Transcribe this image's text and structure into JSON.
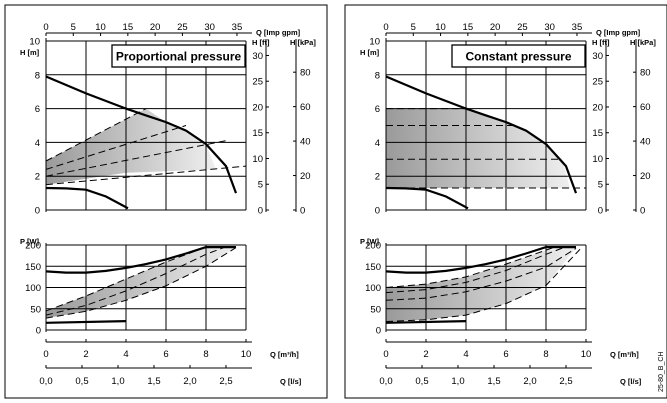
{
  "figure_code": "25-80_B_CH",
  "panels": [
    {
      "title": "Proportional pressure",
      "mode": "proportional",
      "axis_labels": {
        "q_imp": "Q [Imp gpm]",
        "h_m": "H [m]",
        "h_ft": "H [ft]",
        "h_kpa": "H [kPa]",
        "p_w": "P [W]",
        "q_m3h": "Q [m³/h]",
        "q_ls": "Q [l/s]"
      }
    },
    {
      "title": "Constant pressure",
      "mode": "constant",
      "axis_labels": {
        "q_imp": "Q [Imp gpm]",
        "h_m": "H [m]",
        "h_ft": "H [ft]",
        "h_kpa": "H [kPa]",
        "p_w": "P [W]",
        "q_m3h": "Q [m³/h]",
        "q_ls": "Q [l/s]"
      }
    }
  ],
  "chart_data": [
    {
      "type": "line",
      "title": "Proportional pressure",
      "axes": {
        "q_m3h": {
          "range": [
            0,
            10
          ],
          "ticks": [
            "0",
            "2",
            "4",
            "6",
            "8",
            "10"
          ]
        },
        "q_imp_gpm": {
          "range": [
            0,
            35
          ],
          "ticks": [
            "0",
            "5",
            "10",
            "15",
            "20",
            "25",
            "30",
            "35"
          ]
        },
        "q_ls": {
          "ticks": [
            "0,0",
            "0,5",
            "1,0",
            "1,5",
            "2,0",
            "2,5"
          ]
        },
        "h_m": {
          "range": [
            0,
            10
          ],
          "ticks": [
            "0",
            "2",
            "4",
            "6",
            "8",
            "10"
          ]
        },
        "h_ft": {
          "ticks": [
            "0",
            "5",
            "10",
            "15",
            "20",
            "25",
            "30"
          ]
        },
        "h_kpa": {
          "ticks": [
            "0",
            "20",
            "40",
            "60",
            "80"
          ]
        },
        "p_w": {
          "range": [
            0,
            200
          ],
          "ticks": [
            "0",
            "50",
            "100",
            "150",
            "200"
          ]
        }
      },
      "head_curves": [
        {
          "name": "max",
          "style": "solid",
          "x": [
            0,
            2,
            4,
            5,
            6,
            7,
            8,
            9,
            9.5
          ],
          "y": [
            7.9,
            6.9,
            6.0,
            5.6,
            5.2,
            4.7,
            3.9,
            2.6,
            1.0
          ]
        },
        {
          "name": "min",
          "style": "solid",
          "x": [
            0,
            1,
            2,
            3,
            4.1
          ],
          "y": [
            1.3,
            1.28,
            1.2,
            0.8,
            0.1
          ]
        },
        {
          "name": "control-1",
          "style": "dashed",
          "x": [
            0,
            5
          ],
          "y": [
            2.9,
            6.0
          ]
        },
        {
          "name": "control-2",
          "style": "dashed",
          "x": [
            0,
            7
          ],
          "y": [
            2.4,
            5.0
          ]
        },
        {
          "name": "control-3",
          "style": "dashed",
          "x": [
            0,
            9
          ],
          "y": [
            2.0,
            4.1
          ]
        },
        {
          "name": "control-4",
          "style": "dashed",
          "x": [
            0,
            10
          ],
          "y": [
            1.5,
            2.6
          ]
        }
      ],
      "head_shaded_region": {
        "x": [
          0,
          5,
          6,
          7,
          8,
          8.5,
          4.0,
          0
        ],
        "y": [
          2.9,
          6.0,
          5.2,
          4.7,
          3.9,
          2.4,
          2.2,
          1.5
        ]
      },
      "power_curves": [
        {
          "name": "max",
          "style": "solid",
          "x": [
            0,
            1,
            2,
            3,
            4,
            5,
            6,
            7,
            8,
            9.5
          ],
          "y": [
            138,
            135,
            135,
            139,
            146,
            155,
            166,
            180,
            195,
            195
          ]
        },
        {
          "name": "min",
          "style": "solid",
          "x": [
            0,
            4
          ],
          "y": [
            17,
            21
          ]
        },
        {
          "name": "control-1",
          "style": "dashed",
          "x": [
            0,
            2,
            4,
            6,
            8,
            8.5
          ],
          "y": [
            45,
            80,
            120,
            160,
            195,
            196
          ]
        },
        {
          "name": "control-2",
          "style": "dashed",
          "x": [
            0,
            2,
            4,
            6,
            8,
            9
          ],
          "y": [
            35,
            58,
            92,
            133,
            178,
            196
          ]
        },
        {
          "name": "control-3",
          "style": "dashed",
          "x": [
            0,
            2,
            4,
            6,
            8,
            9.5
          ],
          "y": [
            28,
            44,
            70,
            104,
            150,
            194
          ]
        }
      ],
      "power_shaded_region": {
        "x": [
          0,
          2,
          4,
          6,
          8,
          9.5,
          8,
          6,
          4,
          2,
          0
        ],
        "y": [
          45,
          80,
          120,
          160,
          195,
          194,
          150,
          104,
          70,
          44,
          28
        ]
      }
    },
    {
      "type": "line",
      "title": "Constant pressure",
      "axes": {
        "q_m3h": {
          "range": [
            0,
            10
          ],
          "ticks": [
            "0",
            "2",
            "4",
            "6",
            "8",
            "10"
          ]
        },
        "q_imp_gpm": {
          "range": [
            0,
            35
          ],
          "ticks": [
            "0",
            "5",
            "10",
            "15",
            "20",
            "25",
            "30",
            "35"
          ]
        },
        "q_ls": {
          "ticks": [
            "0,0",
            "0,5",
            "1,0",
            "1,5",
            "2,0",
            "2,5"
          ]
        },
        "h_m": {
          "range": [
            0,
            10
          ],
          "ticks": [
            "0",
            "2",
            "4",
            "6",
            "8",
            "10"
          ]
        },
        "h_ft": {
          "ticks": [
            "0",
            "5",
            "10",
            "15",
            "20",
            "25",
            "30"
          ]
        },
        "h_kpa": {
          "ticks": [
            "0",
            "20",
            "40",
            "60",
            "80"
          ]
        },
        "p_w": {
          "range": [
            0,
            200
          ],
          "ticks": [
            "0",
            "50",
            "100",
            "150",
            "200"
          ]
        }
      },
      "head_curves": [
        {
          "name": "max",
          "style": "solid",
          "x": [
            0,
            2,
            4,
            5,
            6,
            7,
            8,
            9,
            9.5
          ],
          "y": [
            7.9,
            6.9,
            6.0,
            5.6,
            5.2,
            4.7,
            3.9,
            2.6,
            1.0
          ]
        },
        {
          "name": "min",
          "style": "solid",
          "x": [
            0,
            1,
            2,
            3,
            4.1
          ],
          "y": [
            1.3,
            1.28,
            1.2,
            0.8,
            0.1
          ]
        },
        {
          "name": "control-6m",
          "style": "dashed",
          "x": [
            0,
            4
          ],
          "y": [
            6.0,
            6.0
          ]
        },
        {
          "name": "control-5m",
          "style": "dashed",
          "x": [
            0,
            6.5
          ],
          "y": [
            5.0,
            5.0
          ]
        },
        {
          "name": "control-3m",
          "style": "dashed",
          "x": [
            0,
            8.8
          ],
          "y": [
            3.0,
            3.0
          ]
        },
        {
          "name": "control-1.3m",
          "style": "dashed",
          "x": [
            0,
            10
          ],
          "y": [
            1.3,
            1.3
          ]
        }
      ],
      "head_shaded_region": {
        "x": [
          0,
          4,
          5,
          6,
          7,
          8,
          8.8,
          9.2,
          0
        ],
        "y": [
          6.0,
          6.0,
          5.6,
          5.2,
          4.7,
          3.9,
          3.0,
          1.3,
          1.3
        ]
      },
      "power_curves": [
        {
          "name": "max",
          "style": "solid",
          "x": [
            0,
            1,
            2,
            3,
            4,
            5,
            6,
            7,
            8,
            9.5
          ],
          "y": [
            138,
            135,
            135,
            139,
            146,
            155,
            166,
            180,
            195,
            195
          ]
        },
        {
          "name": "min",
          "style": "solid",
          "x": [
            0,
            4
          ],
          "y": [
            17,
            21
          ]
        },
        {
          "name": "control-1",
          "style": "dashed",
          "x": [
            0,
            2,
            4,
            6,
            8,
            8.5
          ],
          "y": [
            100,
            108,
            125,
            155,
            188,
            196
          ]
        },
        {
          "name": "control-2",
          "style": "dashed",
          "x": [
            0,
            2,
            4,
            6,
            8,
            9
          ],
          "y": [
            88,
            95,
            112,
            140,
            178,
            196
          ]
        },
        {
          "name": "control-3",
          "style": "dashed",
          "x": [
            0,
            2,
            4,
            6,
            8,
            9.5
          ],
          "y": [
            70,
            75,
            90,
            115,
            148,
            192
          ]
        },
        {
          "name": "control-4",
          "style": "dashed",
          "x": [
            0,
            2,
            4,
            6,
            8,
            9.7
          ],
          "y": [
            20,
            24,
            35,
            62,
            105,
            190
          ]
        }
      ],
      "power_shaded_region": {
        "x": [
          0,
          2,
          4,
          6,
          8,
          9.5,
          8,
          6,
          4,
          2,
          0
        ],
        "y": [
          100,
          108,
          125,
          155,
          188,
          194,
          105,
          62,
          35,
          24,
          20
        ]
      }
    }
  ]
}
